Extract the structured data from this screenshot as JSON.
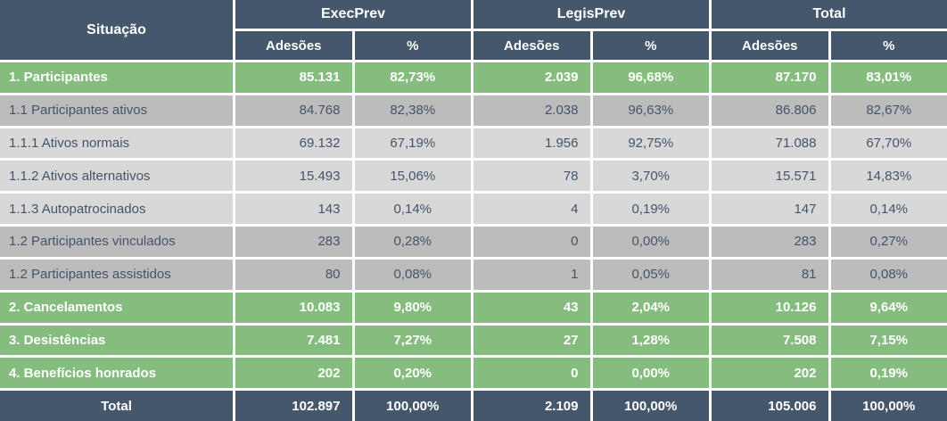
{
  "chart_data": {
    "type": "table",
    "row_header": "Situação",
    "column_groups": [
      {
        "label": "ExecPrev"
      },
      {
        "label": "LegisPrev"
      },
      {
        "label": "Total"
      }
    ],
    "subcolumns": {
      "adesoes": "Adesões",
      "percent": "%"
    },
    "rows": [
      {
        "label": "1. Participantes",
        "style": "section",
        "values": [
          "85.131",
          "82,73%",
          "2.039",
          "96,68%",
          "87.170",
          "83,01%"
        ]
      },
      {
        "label": "1.1 Participantes ativos",
        "style": "level2",
        "values": [
          "84.768",
          "82,38%",
          "2.038",
          "96,63%",
          "86.806",
          "82,67%"
        ]
      },
      {
        "label": "1.1.1 Ativos normais",
        "style": "level3",
        "values": [
          "69.132",
          "67,19%",
          "1.956",
          "92,75%",
          "71.088",
          "67,70%"
        ]
      },
      {
        "label": "1.1.2 Ativos alternativos",
        "style": "level3",
        "values": [
          "15.493",
          "15,06%",
          "78",
          "3,70%",
          "15.571",
          "14,83%"
        ]
      },
      {
        "label": "1.1.3 Autopatrocinados",
        "style": "level3",
        "values": [
          "143",
          "0,14%",
          "4",
          "0,19%",
          "147",
          "0,14%"
        ]
      },
      {
        "label": "1.2 Participantes vinculados",
        "style": "level2",
        "values": [
          "283",
          "0,28%",
          "0",
          "0,00%",
          "283",
          "0,27%"
        ]
      },
      {
        "label": "1.2 Participantes assistidos",
        "style": "level2",
        "values": [
          "80",
          "0,08%",
          "1",
          "0,05%",
          "81",
          "0,08%"
        ]
      },
      {
        "label": "2. Cancelamentos",
        "style": "section",
        "values": [
          "10.083",
          "9,80%",
          "43",
          "2,04%",
          "10.126",
          "9,64%"
        ]
      },
      {
        "label": "3. Desistências",
        "style": "section",
        "values": [
          "7.481",
          "7,27%",
          "27",
          "1,28%",
          "7.508",
          "7,15%"
        ]
      },
      {
        "label": "4. Benefícios honrados",
        "style": "section",
        "values": [
          "202",
          "0,20%",
          "0",
          "0,00%",
          "202",
          "0,19%"
        ]
      },
      {
        "label": "Total",
        "style": "total",
        "values": [
          "102.897",
          "100,00%",
          "2.109",
          "100,00%",
          "105.006",
          "100,00%"
        ]
      }
    ],
    "colors": {
      "header_bg": "#44576B",
      "section_green": "#85BD7E",
      "row_gray_dark": "#BCBCBC",
      "row_gray_light": "#D8D8D8",
      "text_on_dark": "#FFFFFF",
      "text_on_gray": "#44546A",
      "separator": "#FFFFFF"
    }
  }
}
